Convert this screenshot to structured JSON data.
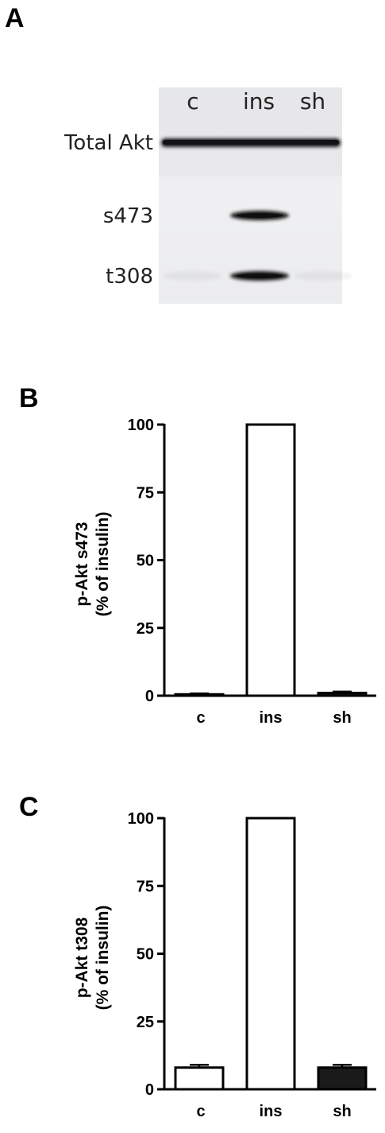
{
  "panel_a": {
    "letter": "A",
    "lanes": [
      "c",
      "ins",
      "sh"
    ],
    "bands": [
      {
        "label": "Total Akt",
        "intensity": [
          1,
          1,
          1
        ]
      },
      {
        "label": "s473",
        "intensity": [
          0,
          1,
          0
        ]
      },
      {
        "label": "t308",
        "intensity": [
          0.05,
          1,
          0.05
        ]
      }
    ]
  },
  "chart_data": [
    {
      "type": "bar",
      "panel": "B",
      "categories": [
        "c",
        "ins",
        "sh"
      ],
      "values": [
        0.5,
        100,
        1
      ],
      "errors": [
        0.3,
        0,
        0.5
      ],
      "bar_fills": [
        "#ffffff",
        "#ffffff",
        "#1a1a1a"
      ],
      "ylabel": [
        "p-Akt s473",
        "(% of insulin)"
      ],
      "ylim": [
        0,
        100
      ],
      "yticks": [
        0,
        25,
        50,
        75,
        100
      ],
      "grid": false
    },
    {
      "type": "bar",
      "panel": "C",
      "categories": [
        "c",
        "ins",
        "sh"
      ],
      "values": [
        8,
        100,
        8
      ],
      "errors": [
        1,
        0,
        1
      ],
      "bar_fills": [
        "#ffffff",
        "#ffffff",
        "#1a1a1a"
      ],
      "ylabel": [
        "p-Akt t308",
        "(% of insulin)"
      ],
      "ylim": [
        0,
        100
      ],
      "yticks": [
        0,
        25,
        50,
        75,
        100
      ],
      "grid": false
    }
  ]
}
